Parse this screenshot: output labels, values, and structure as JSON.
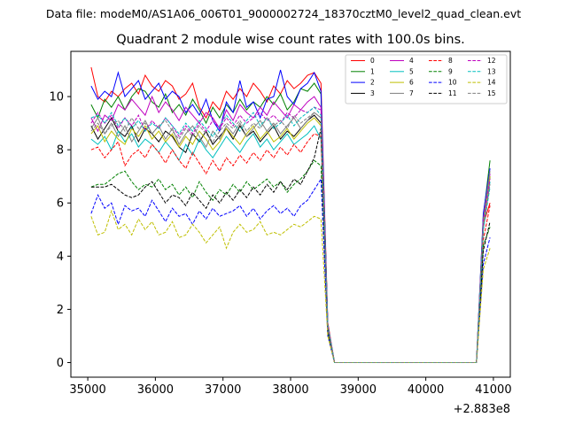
{
  "figure": {
    "suptitle": "Data file: modeM0/AS1A06_006T01_9000002724_18370cztM0_level2_quad_clean.evt"
  },
  "chart_data": {
    "type": "line",
    "title": "Quadrant 2 module wise count rates with 100.0s bins.",
    "xlabel": "",
    "ylabel": "",
    "offset_label": "+2.883e8",
    "xlim": [
      34750,
      41250
    ],
    "ylim": [
      -0.55,
      11.7
    ],
    "xticks": [
      35000,
      36000,
      37000,
      38000,
      39000,
      40000,
      41000
    ],
    "yticks": [
      0,
      2,
      4,
      6,
      8,
      10
    ],
    "x": [
      35050,
      35150,
      35250,
      35350,
      35450,
      35550,
      35650,
      35750,
      35850,
      35950,
      36050,
      36150,
      36250,
      36350,
      36450,
      36550,
      36650,
      36750,
      36850,
      36950,
      37050,
      37150,
      37250,
      37350,
      37450,
      37550,
      37650,
      37750,
      37850,
      37950,
      38050,
      38150,
      38250,
      38350,
      38450,
      38550,
      38650,
      38750,
      38850,
      38950,
      39050,
      39150,
      39250,
      39350,
      39450,
      39550,
      39650,
      39750,
      39850,
      39950,
      40050,
      40150,
      40250,
      40350,
      40450,
      40550,
      40650,
      40750,
      40850,
      40950
    ],
    "series": [
      {
        "name": "0",
        "color": "#ff0000",
        "dash": "solid",
        "values": [
          11.1,
          10.0,
          9.8,
          10.2,
          10.0,
          10.3,
          10.5,
          10.1,
          10.8,
          10.4,
          10.2,
          10.6,
          10.4,
          9.9,
          10.1,
          10.5,
          9.6,
          9.2,
          9.8,
          9.5,
          10.2,
          9.9,
          10.3,
          10.0,
          10.5,
          10.2,
          9.8,
          10.4,
          10.1,
          10.6,
          10.3,
          10.5,
          10.8,
          10.9,
          10.5,
          1.5,
          0.0,
          0.0,
          0.0,
          0.0,
          0.0,
          0.0,
          0.0,
          0.0,
          0.0,
          0.0,
          0.0,
          0.0,
          0.0,
          0.0,
          0.0,
          0.0,
          0.0,
          0.0,
          0.0,
          0.0,
          0.0,
          0.0,
          5.2,
          6.0
        ]
      },
      {
        "name": "1",
        "color": "#008000",
        "dash": "solid",
        "values": [
          9.7,
          9.2,
          9.9,
          9.6,
          10.0,
          9.5,
          10.0,
          10.3,
          10.2,
          9.8,
          9.6,
          10.1,
          9.4,
          9.7,
          9.3,
          9.9,
          9.5,
          9.0,
          9.6,
          9.2,
          9.7,
          9.4,
          9.9,
          9.5,
          9.8,
          9.6,
          10.0,
          9.7,
          10.1,
          9.5,
          9.8,
          10.3,
          10.2,
          10.5,
          10.1,
          1.4,
          0.0,
          0.0,
          0.0,
          0.0,
          0.0,
          0.0,
          0.0,
          0.0,
          0.0,
          0.0,
          0.0,
          0.0,
          0.0,
          0.0,
          0.0,
          0.0,
          0.0,
          0.0,
          0.0,
          0.0,
          0.0,
          0.0,
          5.5,
          7.6
        ]
      },
      {
        "name": "2",
        "color": "#0000ff",
        "dash": "solid",
        "values": [
          10.4,
          9.9,
          10.2,
          10.0,
          10.9,
          10.0,
          10.3,
          10.6,
          9.9,
          10.2,
          10.5,
          9.9,
          10.2,
          10.0,
          9.4,
          9.7,
          9.3,
          9.9,
          9.1,
          8.7,
          9.8,
          9.4,
          10.6,
          9.6,
          9.8,
          9.2,
          9.9,
          10.0,
          11.0,
          10.0,
          9.7,
          10.3,
          10.5,
          10.9,
          10.2,
          1.4,
          0.0,
          0.0,
          0.0,
          0.0,
          0.0,
          0.0,
          0.0,
          0.0,
          0.0,
          0.0,
          0.0,
          0.0,
          0.0,
          0.0,
          0.0,
          0.0,
          0.0,
          0.0,
          0.0,
          0.0,
          0.0,
          0.0,
          5.6,
          7.3
        ]
      },
      {
        "name": "3",
        "color": "#000000",
        "dash": "solid",
        "values": [
          8.9,
          8.4,
          8.8,
          9.2,
          8.7,
          8.5,
          8.9,
          8.3,
          8.8,
          8.6,
          8.3,
          8.7,
          8.5,
          8.1,
          7.9,
          8.6,
          8.3,
          8.7,
          8.2,
          8.5,
          8.8,
          8.4,
          8.9,
          8.5,
          8.7,
          8.3,
          8.6,
          8.9,
          8.4,
          8.7,
          8.5,
          8.8,
          9.1,
          9.3,
          9.0,
          1.3,
          0.0,
          0.0,
          0.0,
          0.0,
          0.0,
          0.0,
          0.0,
          0.0,
          0.0,
          0.0,
          0.0,
          0.0,
          0.0,
          0.0,
          0.0,
          0.0,
          0.0,
          0.0,
          0.0,
          0.0,
          0.0,
          0.0,
          5.0,
          7.0
        ]
      },
      {
        "name": "4",
        "color": "#bf00bf",
        "dash": "solid",
        "values": [
          9.2,
          8.7,
          9.3,
          9.1,
          9.7,
          9.5,
          9.9,
          9.6,
          9.3,
          10.0,
          9.4,
          9.8,
          9.5,
          9.1,
          9.6,
          9.3,
          9.0,
          9.4,
          9.2,
          8.8,
          9.5,
          9.1,
          9.7,
          9.4,
          9.2,
          9.6,
          9.3,
          9.8,
          9.5,
          9.2,
          9.7,
          9.5,
          9.8,
          10.0,
          9.6,
          1.4,
          0.0,
          0.0,
          0.0,
          0.0,
          0.0,
          0.0,
          0.0,
          0.0,
          0.0,
          0.0,
          0.0,
          0.0,
          0.0,
          0.0,
          0.0,
          0.0,
          0.0,
          0.0,
          0.0,
          0.0,
          0.0,
          0.0,
          5.3,
          7.1
        ]
      },
      {
        "name": "5",
        "color": "#00bfbf",
        "dash": "solid",
        "values": [
          8.4,
          8.2,
          8.5,
          8.0,
          8.7,
          8.3,
          8.6,
          8.1,
          8.4,
          8.2,
          7.9,
          8.3,
          8.0,
          7.6,
          8.2,
          7.8,
          8.4,
          8.0,
          7.7,
          8.1,
          8.5,
          8.2,
          7.9,
          8.3,
          8.6,
          8.1,
          8.4,
          8.0,
          8.3,
          8.6,
          8.2,
          8.4,
          8.6,
          8.9,
          8.4,
          1.3,
          0.0,
          0.0,
          0.0,
          0.0,
          0.0,
          0.0,
          0.0,
          0.0,
          0.0,
          0.0,
          0.0,
          0.0,
          0.0,
          0.0,
          0.0,
          0.0,
          0.0,
          0.0,
          0.0,
          0.0,
          0.0,
          0.0,
          5.1,
          6.8
        ]
      },
      {
        "name": "6",
        "color": "#bfbf00",
        "dash": "solid",
        "values": [
          8.6,
          8.9,
          8.3,
          8.7,
          8.4,
          8.2,
          8.8,
          8.5,
          8.9,
          8.4,
          8.7,
          8.3,
          8.6,
          8.1,
          8.5,
          8.2,
          8.7,
          8.4,
          8.0,
          8.3,
          8.8,
          8.5,
          8.2,
          8.6,
          8.9,
          8.4,
          8.7,
          8.3,
          8.5,
          8.8,
          8.4,
          8.7,
          9.0,
          9.2,
          8.9,
          1.3,
          0.0,
          0.0,
          0.0,
          0.0,
          0.0,
          0.0,
          0.0,
          0.0,
          0.0,
          0.0,
          0.0,
          0.0,
          0.0,
          0.0,
          0.0,
          0.0,
          0.0,
          0.0,
          0.0,
          0.0,
          0.0,
          0.0,
          5.2,
          7.0
        ]
      },
      {
        "name": "7",
        "color": "#808080",
        "dash": "solid",
        "values": [
          8.8,
          9.2,
          8.6,
          9.0,
          8.5,
          8.9,
          8.3,
          8.7,
          9.1,
          8.6,
          8.9,
          8.4,
          8.8,
          8.2,
          8.6,
          8.9,
          8.5,
          8.1,
          8.7,
          8.4,
          8.9,
          8.6,
          9.0,
          8.5,
          8.8,
          9.1,
          8.7,
          9.0,
          8.6,
          8.9,
          9.2,
          8.8,
          9.1,
          9.4,
          9.2,
          1.4,
          0.0,
          0.0,
          0.0,
          0.0,
          0.0,
          0.0,
          0.0,
          0.0,
          0.0,
          0.0,
          0.0,
          0.0,
          0.0,
          0.0,
          0.0,
          0.0,
          0.0,
          0.0,
          0.0,
          0.0,
          0.0,
          0.0,
          5.4,
          7.2
        ]
      },
      {
        "name": "8",
        "color": "#ff0000",
        "dash": "dashed",
        "values": [
          8.0,
          8.1,
          7.7,
          8.0,
          8.3,
          7.4,
          7.8,
          8.0,
          7.7,
          8.2,
          7.9,
          7.5,
          8.0,
          7.6,
          7.3,
          7.9,
          7.5,
          7.1,
          7.6,
          7.2,
          7.7,
          7.4,
          7.8,
          7.5,
          7.9,
          7.6,
          8.0,
          7.7,
          8.1,
          7.8,
          8.2,
          7.9,
          8.3,
          8.6,
          8.5,
          1.2,
          0.0,
          0.0,
          0.0,
          0.0,
          0.0,
          0.0,
          0.0,
          0.0,
          0.0,
          0.0,
          0.0,
          0.0,
          0.0,
          0.0,
          0.0,
          0.0,
          0.0,
          0.0,
          0.0,
          0.0,
          0.0,
          0.0,
          4.6,
          5.9
        ]
      },
      {
        "name": "9",
        "color": "#008000",
        "dash": "dashed",
        "values": [
          6.6,
          6.7,
          6.7,
          6.9,
          7.1,
          7.2,
          6.8,
          6.5,
          6.7,
          6.6,
          6.9,
          6.5,
          6.7,
          6.3,
          6.6,
          6.2,
          6.8,
          6.4,
          6.1,
          6.5,
          6.3,
          6.7,
          6.4,
          6.8,
          6.5,
          6.7,
          6.9,
          6.6,
          6.8,
          6.4,
          6.7,
          6.9,
          7.2,
          7.6,
          7.4,
          1.1,
          0.0,
          0.0,
          0.0,
          0.0,
          0.0,
          0.0,
          0.0,
          0.0,
          0.0,
          0.0,
          0.0,
          0.0,
          0.0,
          0.0,
          0.0,
          0.0,
          0.0,
          0.0,
          0.0,
          0.0,
          0.0,
          0.0,
          4.4,
          5.1
        ]
      },
      {
        "name": "10",
        "color": "#0000ff",
        "dash": "dashed",
        "values": [
          5.6,
          6.3,
          5.8,
          6.0,
          5.2,
          5.9,
          5.7,
          5.8,
          5.5,
          6.1,
          5.7,
          5.3,
          5.8,
          5.5,
          5.6,
          5.2,
          5.7,
          5.4,
          5.8,
          5.5,
          5.6,
          5.7,
          5.9,
          5.5,
          5.8,
          5.4,
          5.7,
          5.9,
          5.6,
          5.8,
          5.5,
          5.9,
          6.1,
          6.5,
          6.9,
          1.0,
          0.0,
          0.0,
          0.0,
          0.0,
          0.0,
          0.0,
          0.0,
          0.0,
          0.0,
          0.0,
          0.0,
          0.0,
          0.0,
          0.0,
          0.0,
          0.0,
          0.0,
          0.0,
          0.0,
          0.0,
          0.0,
          0.0,
          3.7,
          4.7
        ]
      },
      {
        "name": "11",
        "color": "#000000",
        "dash": "dashed",
        "values": [
          6.6,
          6.6,
          6.6,
          6.7,
          6.5,
          6.3,
          6.2,
          6.3,
          6.6,
          6.8,
          6.4,
          6.0,
          6.3,
          6.2,
          5.9,
          6.4,
          6.1,
          5.8,
          6.3,
          6.0,
          6.4,
          6.1,
          6.5,
          6.2,
          6.6,
          6.3,
          6.7,
          6.4,
          6.8,
          6.5,
          6.9,
          6.7,
          7.2,
          7.7,
          8.8,
          1.2,
          0.0,
          0.0,
          0.0,
          0.0,
          0.0,
          0.0,
          0.0,
          0.0,
          0.0,
          0.0,
          0.0,
          0.0,
          0.0,
          0.0,
          0.0,
          0.0,
          0.0,
          0.0,
          0.0,
          0.0,
          0.0,
          0.0,
          4.2,
          5.3
        ]
      },
      {
        "name": "12",
        "color": "#bf00bf",
        "dash": "dashed",
        "values": [
          9.0,
          9.4,
          9.0,
          9.3,
          8.8,
          9.2,
          8.9,
          9.3,
          8.7,
          9.1,
          8.8,
          9.2,
          8.9,
          8.5,
          8.9,
          8.6,
          9.0,
          8.7,
          9.1,
          8.8,
          9.2,
          8.9,
          9.3,
          9.0,
          9.2,
          9.4,
          9.1,
          9.3,
          9.0,
          9.4,
          9.2,
          9.5,
          9.4,
          9.6,
          9.5,
          1.4,
          0.0,
          0.0,
          0.0,
          0.0,
          0.0,
          0.0,
          0.0,
          0.0,
          0.0,
          0.0,
          0.0,
          0.0,
          0.0,
          0.0,
          0.0,
          0.0,
          0.0,
          0.0,
          0.0,
          0.0,
          0.0,
          0.0,
          5.3,
          6.9
        ]
      },
      {
        "name": "13",
        "color": "#00bfbf",
        "dash": "dashed",
        "values": [
          9.2,
          9.3,
          9.0,
          9.4,
          8.9,
          9.2,
          8.8,
          9.1,
          8.7,
          9.0,
          8.8,
          9.2,
          8.9,
          8.6,
          9.0,
          8.7,
          9.1,
          8.8,
          8.5,
          8.9,
          9.3,
          9.0,
          8.7,
          9.1,
          9.4,
          8.9,
          9.2,
          8.8,
          9.0,
          9.3,
          8.9,
          9.2,
          9.4,
          9.6,
          9.3,
          1.4,
          0.0,
          0.0,
          0.0,
          0.0,
          0.0,
          0.0,
          0.0,
          0.0,
          0.0,
          0.0,
          0.0,
          0.0,
          0.0,
          0.0,
          0.0,
          0.0,
          0.0,
          0.0,
          0.0,
          0.0,
          0.0,
          0.0,
          5.0,
          6.6
        ]
      },
      {
        "name": "14",
        "color": "#bfbf00",
        "dash": "dashed",
        "values": [
          5.5,
          4.8,
          4.9,
          5.7,
          5.0,
          5.2,
          4.8,
          5.4,
          5.0,
          5.3,
          4.8,
          4.9,
          5.3,
          4.7,
          4.8,
          5.2,
          4.9,
          4.5,
          4.8,
          5.1,
          4.3,
          4.9,
          5.2,
          4.9,
          5.0,
          5.3,
          4.8,
          4.9,
          4.8,
          5.0,
          5.2,
          5.1,
          5.3,
          5.5,
          5.4,
          1.0,
          0.0,
          0.0,
          0.0,
          0.0,
          0.0,
          0.0,
          0.0,
          0.0,
          0.0,
          0.0,
          0.0,
          0.0,
          0.0,
          0.0,
          0.0,
          0.0,
          0.0,
          0.0,
          0.0,
          0.0,
          0.0,
          0.0,
          3.5,
          4.3
        ]
      },
      {
        "name": "15",
        "color": "#808080",
        "dash": "dashed",
        "values": [
          8.7,
          9.0,
          8.6,
          8.9,
          9.1,
          8.7,
          9.2,
          8.8,
          9.0,
          8.6,
          8.9,
          9.1,
          8.7,
          8.4,
          8.8,
          8.5,
          8.9,
          8.6,
          8.3,
          8.7,
          9.0,
          8.8,
          9.1,
          8.7,
          9.0,
          8.8,
          9.2,
          8.9,
          9.1,
          8.8,
          9.3,
          9.0,
          9.2,
          9.4,
          9.2,
          1.3,
          0.0,
          0.0,
          0.0,
          0.0,
          0.0,
          0.0,
          0.0,
          0.0,
          0.0,
          0.0,
          0.0,
          0.0,
          0.0,
          0.0,
          0.0,
          0.0,
          0.0,
          0.0,
          0.0,
          0.0,
          0.0,
          0.0,
          5.1,
          6.7
        ]
      }
    ],
    "legend_position": "top-right",
    "legend_columns": 4,
    "grid": false
  }
}
